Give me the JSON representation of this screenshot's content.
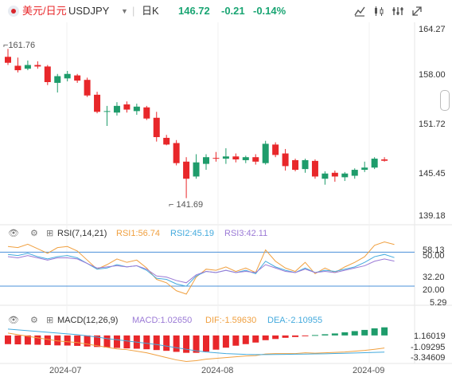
{
  "header": {
    "symbol_title": "美元/日元",
    "ticker": "USDJPY",
    "period": "日K",
    "price": "146.72",
    "change": "-0.21",
    "change_pct": "-0.14%",
    "tool_icons": [
      "draw-icon",
      "candle-type-icon",
      "indicator-settings-icon",
      "collapse-icon"
    ]
  },
  "colors": {
    "up": "#1e9c6b",
    "down": "#e8272a",
    "rsi1": "#f0a040",
    "rsi2": "#44aadd",
    "rsi3": "#9b7ad6",
    "macd_hist_up": "#1e9c6b",
    "macd_hist_down": "#e8272a",
    "dif": "#f0a040",
    "dea": "#44aadd",
    "level_line": "#4a90d9"
  },
  "main_axis": {
    "labels": [
      "164.27",
      "158.00",
      "151.72",
      "145.45",
      "139.18"
    ]
  },
  "annotations": {
    "high": "161.76",
    "low": "141.69"
  },
  "rsi": {
    "title": "RSI(7,14,21)",
    "rsi1": "RSI1:56.74",
    "rsi2": "RSI2:45.19",
    "rsi3": "RSI3:42.11",
    "axis": [
      "58.13",
      "50.00",
      "32.20",
      "20.00",
      "5.29"
    ]
  },
  "macd": {
    "title": "MACD(12,26,9)",
    "macd": "MACD:1.02650",
    "dif": "DIF:-1.59630",
    "dea": "DEA:-2.10955",
    "axis": [
      "1.16019",
      "-1.09295",
      "-3.34609"
    ]
  },
  "date_axis": [
    "2024-07",
    "2024-08",
    "2024-09"
  ],
  "chart_data": {
    "type": "candlestick",
    "y_range": [
      139.18,
      164.27
    ],
    "candles": [
      {
        "o": 160.7,
        "h": 161.76,
        "l": 159.6,
        "c": 159.9
      },
      {
        "o": 159.5,
        "h": 160.6,
        "l": 158.6,
        "c": 158.9
      },
      {
        "o": 159.1,
        "h": 160.2,
        "l": 158.9,
        "c": 159.6
      },
      {
        "o": 159.6,
        "h": 160.1,
        "l": 159.1,
        "c": 159.4
      },
      {
        "o": 159.4,
        "h": 159.6,
        "l": 156.9,
        "c": 157.3
      },
      {
        "o": 157.2,
        "h": 158.4,
        "l": 155.9,
        "c": 158.1
      },
      {
        "o": 157.8,
        "h": 158.8,
        "l": 157.4,
        "c": 158.4
      },
      {
        "o": 158.2,
        "h": 158.4,
        "l": 157.2,
        "c": 157.5
      },
      {
        "o": 157.6,
        "h": 157.9,
        "l": 155.3,
        "c": 155.5
      },
      {
        "o": 155.6,
        "h": 156.0,
        "l": 153.1,
        "c": 153.3
      },
      {
        "o": 153.4,
        "h": 154.1,
        "l": 151.4,
        "c": 153.4
      },
      {
        "o": 153.2,
        "h": 154.6,
        "l": 152.8,
        "c": 154.1
      },
      {
        "o": 154.3,
        "h": 154.7,
        "l": 153.2,
        "c": 153.6
      },
      {
        "o": 153.4,
        "h": 154.4,
        "l": 152.9,
        "c": 154.0
      },
      {
        "o": 153.9,
        "h": 154.1,
        "l": 152.2,
        "c": 152.4
      },
      {
        "o": 152.5,
        "h": 153.3,
        "l": 149.3,
        "c": 149.9
      },
      {
        "o": 149.8,
        "h": 150.2,
        "l": 148.8,
        "c": 148.9
      },
      {
        "o": 149.1,
        "h": 149.5,
        "l": 146.1,
        "c": 146.4
      },
      {
        "o": 146.6,
        "h": 147.2,
        "l": 141.69,
        "c": 144.3
      },
      {
        "o": 144.6,
        "h": 147.6,
        "l": 144.3,
        "c": 146.5
      },
      {
        "o": 146.3,
        "h": 147.6,
        "l": 145.5,
        "c": 147.2
      },
      {
        "o": 147.1,
        "h": 147.9,
        "l": 146.6,
        "c": 147.0
      },
      {
        "o": 147.0,
        "h": 148.4,
        "l": 146.3,
        "c": 147.3
      },
      {
        "o": 147.3,
        "h": 147.7,
        "l": 146.5,
        "c": 146.9
      },
      {
        "o": 146.8,
        "h": 147.4,
        "l": 146.4,
        "c": 147.2
      },
      {
        "o": 147.2,
        "h": 147.6,
        "l": 146.2,
        "c": 146.6
      },
      {
        "o": 146.4,
        "h": 149.4,
        "l": 146.2,
        "c": 149.0
      },
      {
        "o": 148.9,
        "h": 149.2,
        "l": 147.2,
        "c": 147.5
      },
      {
        "o": 147.7,
        "h": 148.3,
        "l": 145.4,
        "c": 146.0
      },
      {
        "o": 146.8,
        "h": 147.0,
        "l": 145.3,
        "c": 145.5
      },
      {
        "o": 145.6,
        "h": 147.0,
        "l": 145.1,
        "c": 146.8
      },
      {
        "o": 146.7,
        "h": 146.9,
        "l": 144.3,
        "c": 144.6
      },
      {
        "o": 144.3,
        "h": 145.3,
        "l": 143.5,
        "c": 145.0
      },
      {
        "o": 145.1,
        "h": 145.4,
        "l": 143.9,
        "c": 144.6
      },
      {
        "o": 144.5,
        "h": 145.2,
        "l": 144.0,
        "c": 145.0
      },
      {
        "o": 144.7,
        "h": 145.7,
        "l": 144.3,
        "c": 145.5
      },
      {
        "o": 145.5,
        "h": 146.6,
        "l": 145.2,
        "c": 145.8
      },
      {
        "o": 145.8,
        "h": 147.2,
        "l": 145.6,
        "c": 147.0
      },
      {
        "o": 146.9,
        "h": 147.2,
        "l": 146.6,
        "c": 146.72
      }
    ],
    "rsi_range": [
      5.29,
      65
    ],
    "rsi_levels": [
      50.0,
      20.0
    ],
    "rsi1": [
      55,
      54,
      57,
      53,
      49,
      54,
      55,
      51,
      43,
      35,
      39,
      44,
      41,
      43,
      36,
      26,
      23,
      16,
      13,
      28,
      35,
      34,
      37,
      33,
      36,
      32,
      52,
      42,
      36,
      33,
      41,
      31,
      36,
      32,
      37,
      41,
      46,
      56,
      59,
      56.74
    ],
    "rsi2": [
      48,
      47,
      49,
      46,
      44,
      46,
      47,
      45,
      40,
      35,
      36,
      39,
      37,
      38,
      34,
      27,
      26,
      22,
      20,
      29,
      33,
      32,
      34,
      32,
      34,
      31,
      42,
      37,
      34,
      32,
      36,
      32,
      34,
      33,
      35,
      37,
      41,
      46,
      48,
      45.19
    ],
    "rsi3": [
      46,
      45,
      47,
      45,
      43,
      45,
      45,
      44,
      40,
      36,
      37,
      38,
      37,
      38,
      35,
      29,
      28,
      25,
      23,
      30,
      33,
      32,
      34,
      32,
      33,
      32,
      39,
      36,
      33,
      32,
      35,
      32,
      33,
      32,
      34,
      36,
      38,
      42,
      44,
      42.11
    ],
    "macd_range": [
      -3.346,
      1.5
    ],
    "macd_hist": [
      -1.1,
      -1.13,
      -1.16,
      -1.18,
      -1.22,
      -1.26,
      -1.28,
      -1.32,
      -1.4,
      -1.46,
      -1.52,
      -1.58,
      -1.64,
      -1.68,
      -1.75,
      -1.85,
      -1.95,
      -2.08,
      -2.2,
      -2.2,
      -2.05,
      -1.8,
      -1.55,
      -1.3,
      -1.1,
      -0.9,
      -0.6,
      -0.45,
      -0.3,
      -0.2,
      -0.08,
      0.05,
      0.15,
      0.25,
      0.4,
      0.55,
      0.7,
      0.9,
      1.0265
    ],
    "dif": [
      0.3,
      0.1,
      -0.1,
      -0.3,
      -0.5,
      -0.7,
      -0.8,
      -0.9,
      -1.1,
      -1.3,
      -1.5,
      -1.7,
      -1.8,
      -2.0,
      -2.2,
      -2.5,
      -2.8,
      -3.1,
      -3.3,
      -3.2,
      -3.0,
      -2.9,
      -2.8,
      -2.7,
      -2.6,
      -2.55,
      -2.35,
      -2.3,
      -2.3,
      -2.3,
      -2.2,
      -2.25,
      -2.2,
      -2.15,
      -2.1,
      -2.0,
      -1.9,
      -1.75,
      -1.5963
    ],
    "dea": [
      0.8,
      0.7,
      0.6,
      0.5,
      0.4,
      0.3,
      0.2,
      0.1,
      -0.05,
      -0.2,
      -0.4,
      -0.55,
      -0.7,
      -0.85,
      -1.0,
      -1.15,
      -1.35,
      -1.55,
      -1.75,
      -1.95,
      -2.1,
      -2.2,
      -2.3,
      -2.35,
      -2.4,
      -2.42,
      -2.42,
      -2.41,
      -2.4,
      -2.38,
      -2.36,
      -2.34,
      -2.32,
      -2.29,
      -2.26,
      -2.22,
      -2.19,
      -2.15,
      -2.10955
    ]
  }
}
